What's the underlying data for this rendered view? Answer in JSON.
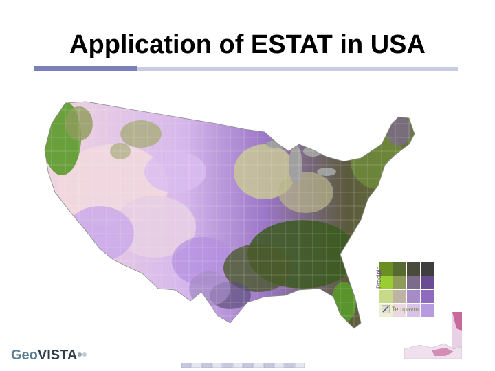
{
  "slide": {
    "title": "Application of ESTAT in USA"
  },
  "legend": {
    "y_label": "Precipin",
    "x_label": "Tempavm",
    "grid_colors": [
      [
        "#6b8e23",
        "#556b2f",
        "#4b4b3b",
        "#3e3e3e"
      ],
      [
        "#9acd32",
        "#8f9b5a",
        "#7d6b8c",
        "#6a4c93"
      ],
      [
        "#c9d98a",
        "#bfb3a6",
        "#a58cc6",
        "#8e6bbf"
      ],
      [
        "#ecefd0",
        "#ead9e3",
        "#d8c2ea",
        "#b79be0"
      ]
    ]
  },
  "logo": {
    "part1": "Geo",
    "part2": "VISTA"
  },
  "colors": {
    "rule": "#c9cce0",
    "rule_accent": "#7b81b8",
    "pale_pink": "#f2d8de",
    "lavender": "#c6a6e8",
    "purple": "#8e63c8",
    "olive": "#a8ad7a",
    "green": "#5a9a2a",
    "dark_green": "#3b5a1e",
    "lake_gray": "#a0a0a0"
  }
}
